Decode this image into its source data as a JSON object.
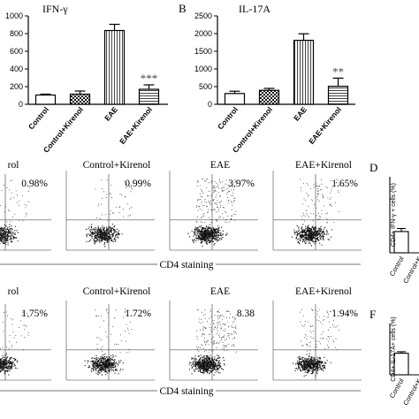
{
  "chart_data": [
    {
      "type": "bar",
      "panel_letter": "",
      "title": "IFN-γ",
      "categories": [
        "Control",
        "Control+Kirenol",
        "EAE",
        "EAE+Kirenol"
      ],
      "values": [
        105,
        115,
        835,
        170
      ],
      "errors": [
        10,
        35,
        70,
        50
      ],
      "patterns": [
        "solid",
        "checker",
        "vstripe",
        "hstripe"
      ],
      "annotations": [
        "",
        "",
        "",
        "***"
      ],
      "yticks": [
        "0",
        "200",
        "400",
        "600",
        "800",
        "1000"
      ],
      "ylim": [
        0,
        1000
      ]
    },
    {
      "type": "bar",
      "panel_letter": "B",
      "title": "IL-17A",
      "categories": [
        "Control",
        "Control+Kirenol",
        "EAE",
        "EAE+Kirenol"
      ],
      "values": [
        305,
        395,
        1810,
        510
      ],
      "errors": [
        65,
        55,
        185,
        230
      ],
      "patterns": [
        "solid",
        "checker",
        "vstripe",
        "hstripe"
      ],
      "annotations": [
        "",
        "",
        "",
        "**"
      ],
      "yticks": [
        "0",
        "500",
        "1000",
        "1500",
        "2000",
        "2500"
      ],
      "ylim": [
        0,
        2500
      ]
    },
    {
      "type": "scatter",
      "name": "flow-row-ifn",
      "panel_labels": [
        "rol",
        "Control+Kirenol",
        "EAE",
        "EAE+Kirenol"
      ],
      "percentages": [
        "0.98%",
        "0.99%",
        "3.97%",
        "1.65%"
      ],
      "xlabel": "CD4 staining"
    },
    {
      "type": "scatter",
      "name": "flow-row-il17",
      "panel_labels": [
        "rol",
        "Control+Kirenol",
        "EAE",
        "EAE+Kirenol"
      ],
      "percentages": [
        "1.75%",
        "1.72%",
        "8.38",
        "1.94%"
      ],
      "xlabel": "CD4 staining"
    },
    {
      "type": "bar",
      "panel_letter": "D",
      "ylabel": "CD4+ IFN-γ + cells (%)",
      "categories": [
        "Control",
        "Control+K"
      ],
      "values": [
        1.4,
        null
      ],
      "errors": [
        0.2,
        null
      ],
      "yticks": [],
      "ylim": [
        0,
        5
      ]
    },
    {
      "type": "bar",
      "panel_letter": "F",
      "ylabel": "CD4+ IL-17A+ cells (%)",
      "categories": [
        "Control",
        "Control+K"
      ],
      "values": [
        2.1,
        null
      ],
      "errors": [
        0.15,
        null
      ],
      "yticks": [],
      "ylim": [
        0,
        5
      ]
    }
  ]
}
